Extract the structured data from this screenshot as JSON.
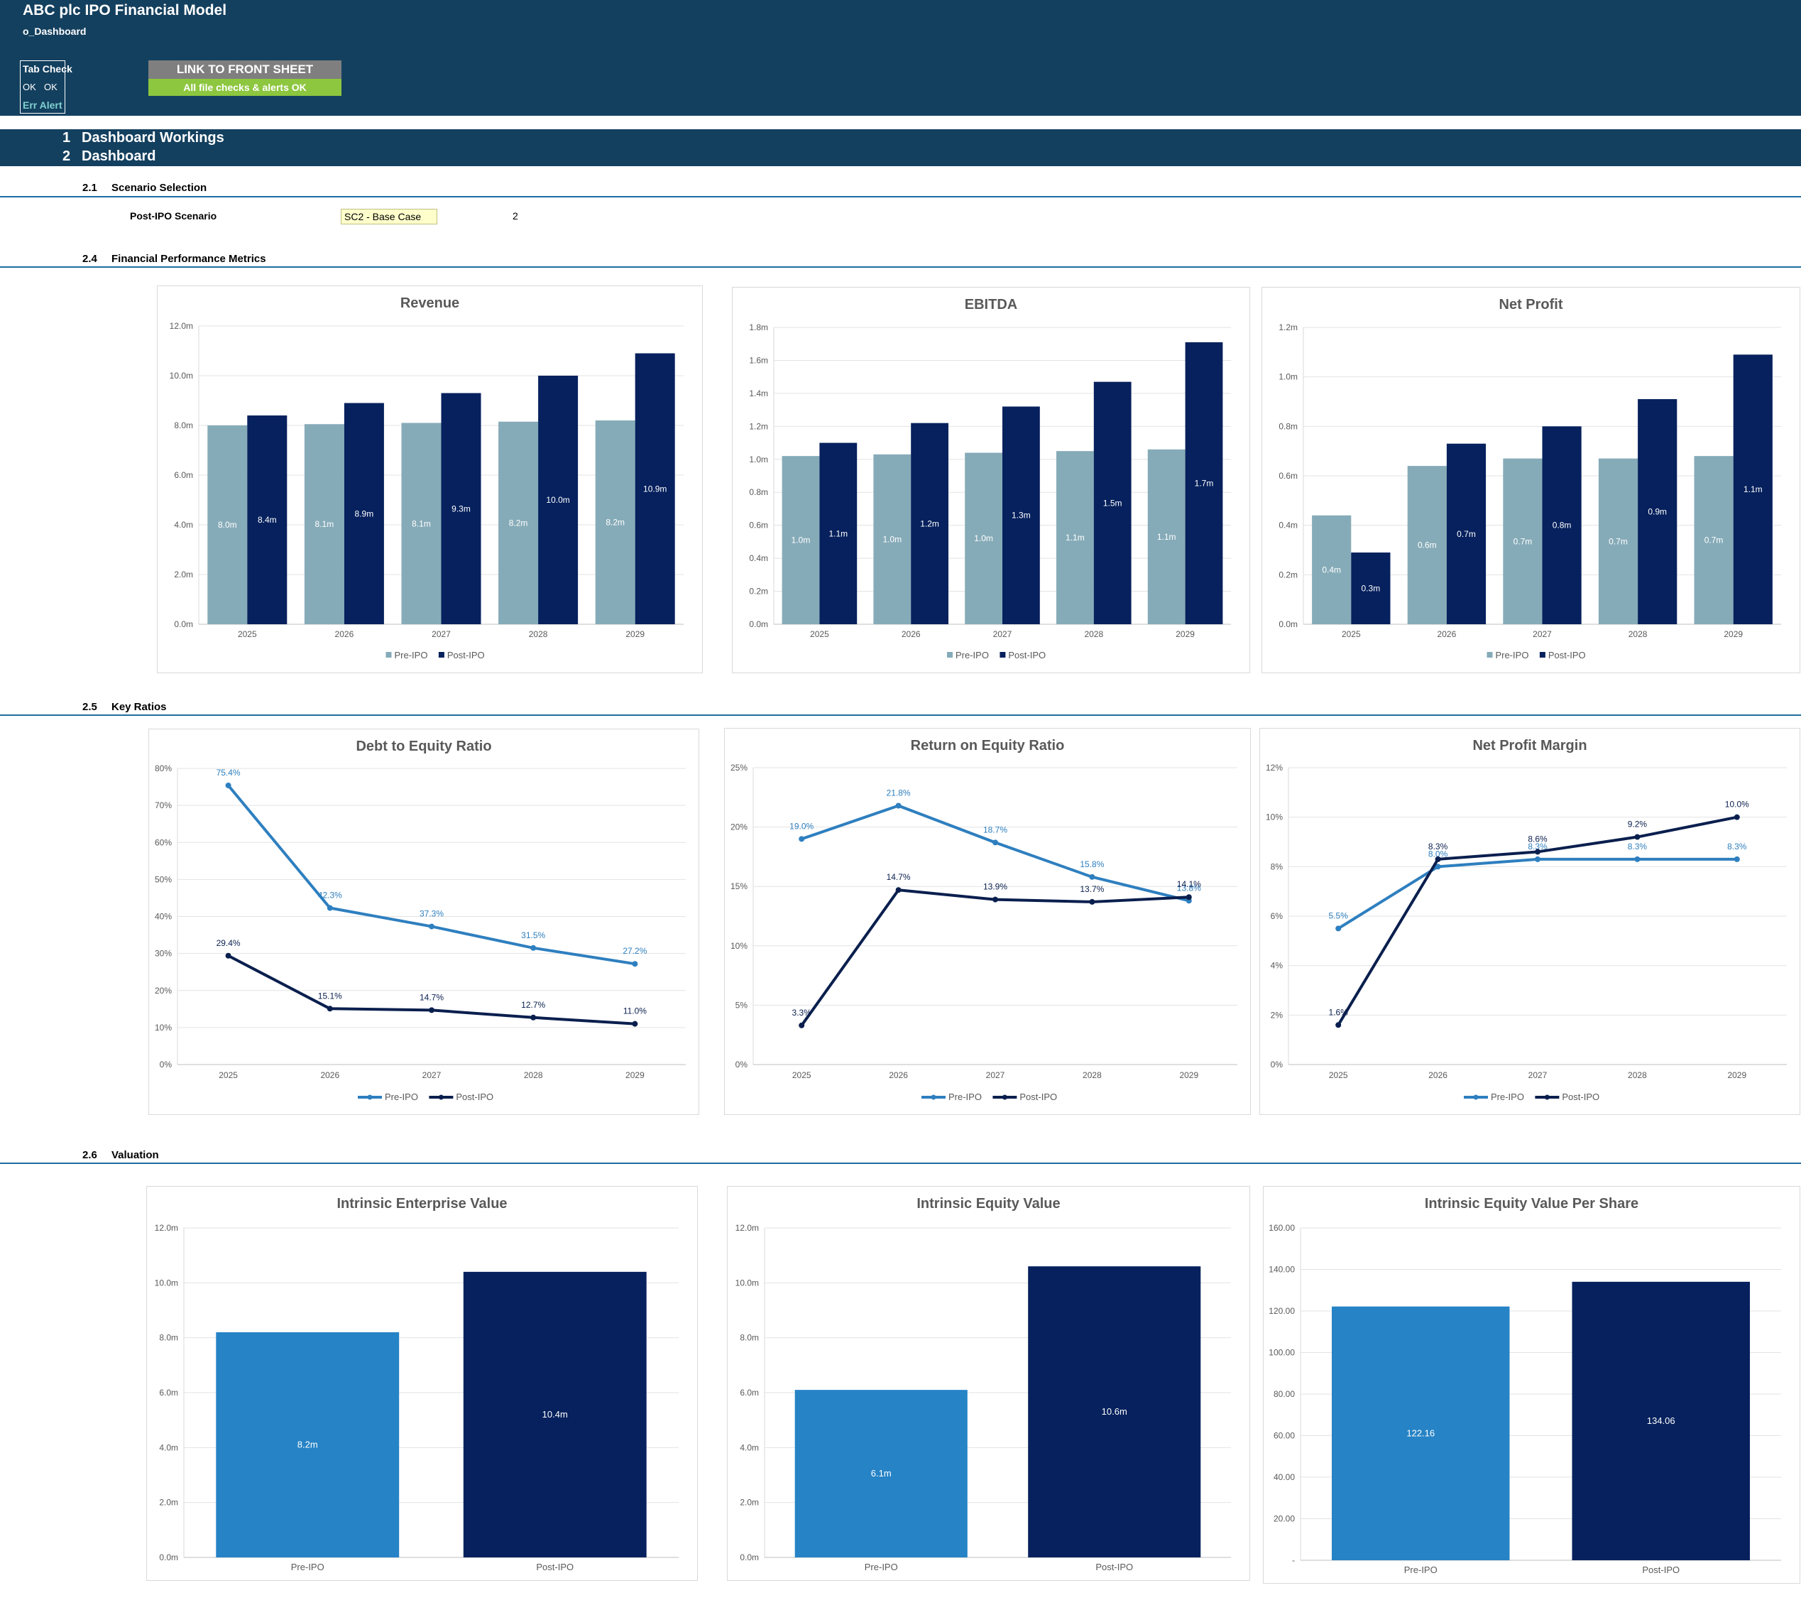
{
  "header": {
    "title": "ABC plc IPO Financial Model",
    "sheet": "o_Dashboard",
    "tab_check": {
      "title": "Tab Check",
      "ok1": "OK",
      "ok2": "OK",
      "err": "Err Alert"
    },
    "link_label": "LINK TO FRONT SHEET",
    "alert_label": "All file checks & alerts OK"
  },
  "sections": {
    "s1_num": "1",
    "s1": "Dashboard Workings",
    "s2_num": "2",
    "s2": "Dashboard",
    "s21_num": "2.1",
    "s21": "Scenario Selection",
    "s24_num": "2.4",
    "s24": "Financial Performance Metrics",
    "s25_num": "2.5",
    "s25": "Key Ratios",
    "s26_num": "2.6",
    "s26": "Valuation"
  },
  "scenario": {
    "label": "Post-IPO Scenario",
    "value": "SC2 - Base Case",
    "number": "2"
  },
  "colors": {
    "pre_bar": "#86abb8",
    "post_bar": "#06215d",
    "pre_line": "#2e7fbf",
    "post_line": "#0a1f4e",
    "pre_val": "#2683c6",
    "post_val": "#06215d"
  },
  "chart_data": [
    {
      "id": "revenue",
      "type": "bar",
      "title": "Revenue",
      "categories": [
        "2025",
        "2026",
        "2027",
        "2028",
        "2029"
      ],
      "yticks": [
        "0.0m",
        "2.0m",
        "4.0m",
        "6.0m",
        "8.0m",
        "10.0m",
        "12.0m"
      ],
      "ylim": [
        0,
        12
      ],
      "series": [
        {
          "name": "Pre-IPO",
          "values": [
            8.0,
            8.05,
            8.1,
            8.15,
            8.2
          ],
          "labels": [
            "8.0m",
            "8.1m",
            "8.1m",
            "8.2m",
            "8.2m"
          ]
        },
        {
          "name": "Post-IPO",
          "values": [
            8.4,
            8.9,
            9.3,
            10.0,
            10.9
          ],
          "labels": [
            "8.4m",
            "8.9m",
            "9.3m",
            "10.0m",
            "10.9m"
          ]
        }
      ],
      "legend": "bottom"
    },
    {
      "id": "ebitda",
      "type": "bar",
      "title": "EBITDA",
      "categories": [
        "2025",
        "2026",
        "2027",
        "2028",
        "2029"
      ],
      "yticks": [
        "0.0m",
        "0.2m",
        "0.4m",
        "0.6m",
        "0.8m",
        "1.0m",
        "1.2m",
        "1.4m",
        "1.6m",
        "1.8m"
      ],
      "ylim": [
        0,
        1.8
      ],
      "series": [
        {
          "name": "Pre-IPO",
          "values": [
            1.02,
            1.03,
            1.04,
            1.05,
            1.06
          ],
          "labels": [
            "1.0m",
            "1.0m",
            "1.0m",
            "1.1m",
            "1.1m"
          ]
        },
        {
          "name": "Post-IPO",
          "values": [
            1.1,
            1.22,
            1.32,
            1.47,
            1.71
          ],
          "labels": [
            "1.1m",
            "1.2m",
            "1.3m",
            "1.5m",
            "1.7m"
          ]
        }
      ],
      "legend": "bottom"
    },
    {
      "id": "netprofit",
      "type": "bar",
      "title": "Net Profit",
      "categories": [
        "2025",
        "2026",
        "2027",
        "2028",
        "2029"
      ],
      "yticks": [
        "0.0m",
        "0.2m",
        "0.4m",
        "0.6m",
        "0.8m",
        "1.0m",
        "1.2m"
      ],
      "ylim": [
        0,
        1.2
      ],
      "series": [
        {
          "name": "Pre-IPO",
          "values": [
            0.44,
            0.64,
            0.67,
            0.67,
            0.68
          ],
          "labels": [
            "0.4m",
            "0.6m",
            "0.7m",
            "0.7m",
            "0.7m"
          ]
        },
        {
          "name": "Post-IPO",
          "values": [
            0.29,
            0.73,
            0.8,
            0.91,
            1.09
          ],
          "labels": [
            "0.3m",
            "0.7m",
            "0.8m",
            "0.9m",
            "1.1m"
          ]
        }
      ],
      "legend": "bottom"
    },
    {
      "id": "de",
      "type": "line",
      "title": "Debt to Equity Ratio",
      "categories": [
        "2025",
        "2026",
        "2027",
        "2028",
        "2029"
      ],
      "yticks": [
        "0%",
        "10%",
        "20%",
        "30%",
        "40%",
        "50%",
        "60%",
        "70%",
        "80%"
      ],
      "ylim": [
        0,
        80
      ],
      "series": [
        {
          "name": "Pre-IPO",
          "values": [
            75.4,
            42.3,
            37.3,
            31.5,
            27.2
          ],
          "labels": [
            "75.4%",
            "42.3%",
            "37.3%",
            "31.5%",
            "27.2%"
          ]
        },
        {
          "name": "Post-IPO",
          "values": [
            29.4,
            15.1,
            14.7,
            12.7,
            11.0
          ],
          "labels": [
            "29.4%",
            "15.1%",
            "14.7%",
            "12.7%",
            "11.0%"
          ]
        }
      ],
      "legend": "bottom"
    },
    {
      "id": "roe",
      "type": "line",
      "title": "Return on Equity Ratio",
      "categories": [
        "2025",
        "2026",
        "2027",
        "2028",
        "2029"
      ],
      "yticks": [
        "0%",
        "5%",
        "10%",
        "15%",
        "20%",
        "25%"
      ],
      "ylim": [
        0,
        25
      ],
      "series": [
        {
          "name": "Pre-IPO",
          "values": [
            19.0,
            21.8,
            18.7,
            15.8,
            13.8
          ],
          "labels": [
            "19.0%",
            "21.8%",
            "18.7%",
            "15.8%",
            "13.8%"
          ]
        },
        {
          "name": "Post-IPO",
          "values": [
            3.3,
            14.7,
            13.9,
            13.7,
            14.1
          ],
          "labels": [
            "3.3%",
            "14.7%",
            "13.9%",
            "13.7%",
            "14.1%"
          ]
        }
      ],
      "legend": "bottom"
    },
    {
      "id": "npm",
      "type": "line",
      "title": "Net Profit Margin",
      "categories": [
        "2025",
        "2026",
        "2027",
        "2028",
        "2029"
      ],
      "yticks": [
        "0%",
        "2%",
        "4%",
        "6%",
        "8%",
        "10%",
        "12%"
      ],
      "ylim": [
        0,
        12
      ],
      "series": [
        {
          "name": "Pre-IPO",
          "values": [
            5.5,
            8.0,
            8.3,
            8.3,
            8.3
          ],
          "labels": [
            "5.5%",
            "8.0%",
            "8.3%",
            "8.3%",
            "8.3%"
          ]
        },
        {
          "name": "Post-IPO",
          "values": [
            1.6,
            8.3,
            8.6,
            9.2,
            10.0
          ],
          "labels": [
            "1.6%",
            "8.3%",
            "8.6%",
            "9.2%",
            "10.0%"
          ]
        }
      ],
      "legend": "bottom"
    },
    {
      "id": "iev",
      "type": "bar",
      "title": "Intrinsic Enterprise Value",
      "categories": [
        "Pre-IPO",
        "Post-IPO"
      ],
      "yticks": [
        "0.0m",
        "2.0m",
        "4.0m",
        "6.0m",
        "8.0m",
        "10.0m",
        "12.0m"
      ],
      "ylim": [
        0,
        12
      ],
      "values": [
        8.2,
        10.4
      ],
      "labels": [
        "8.2m",
        "10.4m"
      ]
    },
    {
      "id": "ieqv",
      "type": "bar",
      "title": "Intrinsic Equity Value",
      "categories": [
        "Pre-IPO",
        "Post-IPO"
      ],
      "yticks": [
        "0.0m",
        "2.0m",
        "4.0m",
        "6.0m",
        "8.0m",
        "10.0m",
        "12.0m"
      ],
      "ylim": [
        0,
        12
      ],
      "values": [
        6.1,
        10.6
      ],
      "labels": [
        "6.1m",
        "10.6m"
      ]
    },
    {
      "id": "ieps",
      "type": "bar",
      "title": "Intrinsic Equity Value Per Share",
      "categories": [
        "Pre-IPO",
        "Post-IPO"
      ],
      "yticks": [
        "-",
        "20.00",
        "40.00",
        "60.00",
        "80.00",
        "100.00",
        "120.00",
        "140.00",
        "160.00"
      ],
      "ylim": [
        0,
        160
      ],
      "values": [
        122.16,
        134.06
      ],
      "labels": [
        "122.16",
        "134.06"
      ]
    }
  ]
}
